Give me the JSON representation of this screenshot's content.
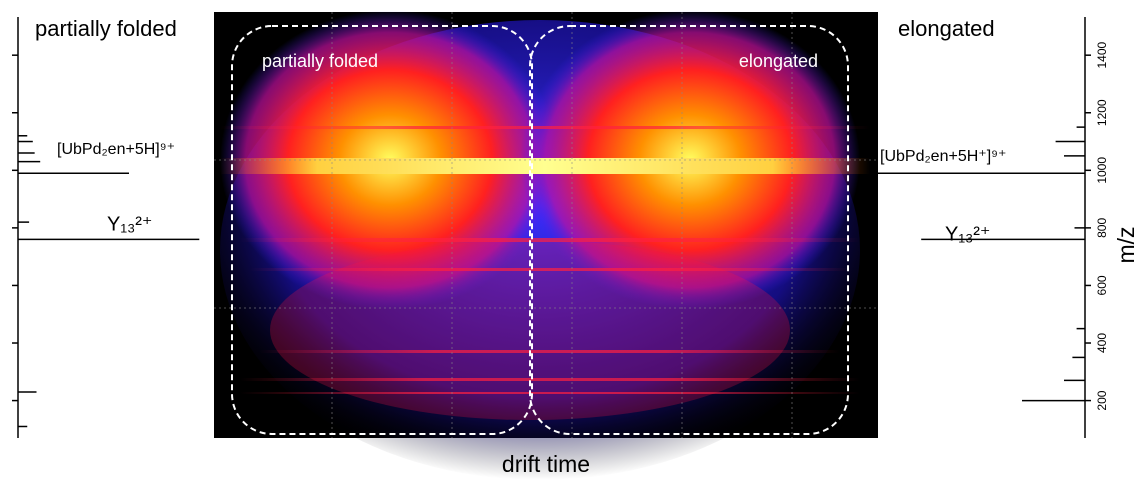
{
  "chart_data": {
    "type": "heatmap",
    "x_label": "drift time",
    "y_label": "m/z",
    "region_labels": [
      "partially folded",
      "elongated"
    ],
    "ylim": [
      70,
      1550
    ],
    "yticks": [
      200,
      400,
      600,
      800,
      1000,
      1200,
      1400
    ],
    "spectra": [
      {
        "label": "partially folded",
        "color": "#000000",
        "x": [
          110,
          230,
          760,
          820,
          990,
          1030,
          1060,
          1100,
          1120
        ],
        "values": [
          5,
          10,
          98,
          6,
          60,
          12,
          9,
          8,
          5
        ],
        "annotations": [
          "[UbPd₂en+5H]⁹⁺",
          "Y₁₃²⁺"
        ]
      },
      {
        "label": "elongated",
        "color": "#000000",
        "x": [
          200,
          270,
          350,
          450,
          760,
          800,
          990,
          1050,
          1100,
          1150
        ],
        "values": [
          30,
          10,
          6,
          4,
          78,
          5,
          100,
          10,
          14,
          4
        ],
        "annotations": [
          "[UbPd₂en+5H⁺]⁹⁺",
          "Y₁₃²⁺"
        ]
      }
    ]
  }
}
